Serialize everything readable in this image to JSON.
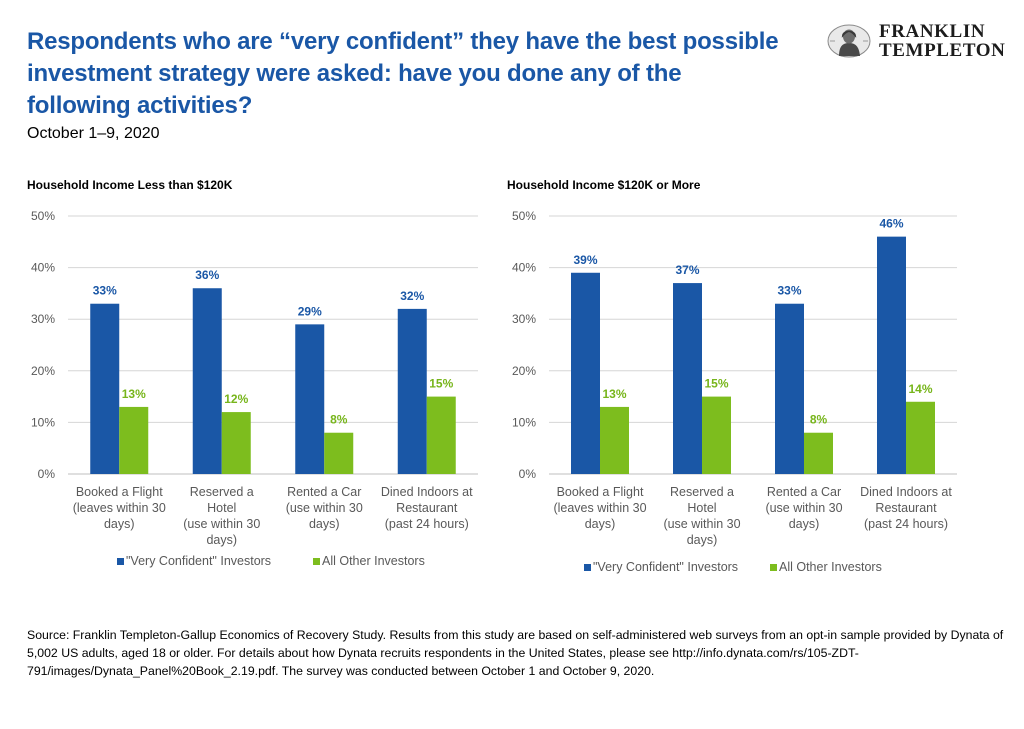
{
  "header": {
    "title": "Respondents who are “very confident” they have the best possible investment strategy were asked: have you done any of the following activities?",
    "subtitle": "October 1–9, 2020"
  },
  "logo": {
    "line1": "FRANKLIN",
    "line2": "TEMPLETON",
    "icon": "franklin-portrait-icon"
  },
  "colors": {
    "very_confident": "#1a57a6",
    "all_other": "#7dbd1e",
    "label_blue": "#1a57a6",
    "label_green": "#77b51b",
    "grid": "#d6d6d6",
    "axis_text": "#595959"
  },
  "chart_data": [
    {
      "type": "bar",
      "title": "Household Income Less than $120K",
      "categories": [
        [
          "Booked a Flight",
          "(leaves within 30",
          "days)"
        ],
        [
          "Reserved a",
          "Hotel",
          "(use within 30",
          "days)"
        ],
        [
          "Rented a Car",
          "(use within 30",
          "days)"
        ],
        [
          "Dined Indoors at",
          "Restaurant",
          "(past 24 hours)"
        ]
      ],
      "series": [
        {
          "name": "\"Very Confident\" Investors",
          "values": [
            33,
            36,
            29,
            32
          ]
        },
        {
          "name": "All Other Investors",
          "values": [
            13,
            12,
            8,
            15
          ]
        }
      ],
      "ylim": [
        0,
        50
      ],
      "yticks": [
        0,
        10,
        20,
        30,
        40,
        50
      ],
      "ytick_labels": [
        "0%",
        "10%",
        "20%",
        "30%",
        "40%",
        "50%"
      ],
      "value_labels": [
        [
          "33%",
          "36%",
          "29%",
          "32%"
        ],
        [
          "13%",
          "12%",
          "8%",
          "15%"
        ]
      ],
      "grid": true,
      "legend": "bottom"
    },
    {
      "type": "bar",
      "title": "Household Income $120K or More",
      "categories": [
        [
          "Booked a Flight",
          "(leaves within 30",
          "days)"
        ],
        [
          "Reserved a",
          "Hotel",
          "(use within 30",
          "days)"
        ],
        [
          "Rented a Car",
          "(use within 30",
          "days)"
        ],
        [
          "Dined Indoors at",
          "Restaurant",
          "(past 24 hours)"
        ]
      ],
      "series": [
        {
          "name": "\"Very Confident\" Investors",
          "values": [
            39,
            37,
            33,
            46
          ]
        },
        {
          "name": "All Other Investors",
          "values": [
            13,
            15,
            8,
            14
          ]
        }
      ],
      "ylim": [
        0,
        50
      ],
      "yticks": [
        0,
        10,
        20,
        30,
        40,
        50
      ],
      "ytick_labels": [
        "0%",
        "10%",
        "20%",
        "30%",
        "40%",
        "50%"
      ],
      "value_labels": [
        [
          "39%",
          "37%",
          "33%",
          "46%"
        ],
        [
          "13%",
          "15%",
          "8%",
          "14%"
        ]
      ],
      "grid": true,
      "legend": "bottom"
    }
  ],
  "footnote": "Source: Franklin Templeton-Gallup Economics of Recovery Study. Results from this study are based on self-administered web surveys from an opt-in sample provided by Dynata of 5,002 US adults, aged 18 or older. For details about how Dynata recruits respondents in the United States, please see http://info.dynata.com/rs/105-ZDT-791/images/Dynata_Panel%20Book_2.19.pdf. The survey was conducted between October 1 and October 9, 2020."
}
